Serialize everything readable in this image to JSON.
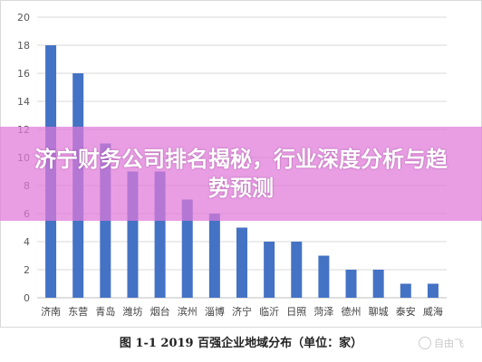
{
  "chart_data": {
    "type": "bar",
    "categories": [
      "济南",
      "东营",
      "青岛",
      "潍坊",
      "烟台",
      "滨州",
      "淄博",
      "济宁",
      "临沂",
      "日照",
      "菏泽",
      "德州",
      "聊城",
      "泰安",
      "威海"
    ],
    "values": [
      18,
      16,
      11,
      9,
      9,
      7,
      6,
      5,
      4,
      4,
      3,
      2,
      2,
      1,
      1
    ],
    "ylim": [
      0,
      20
    ],
    "yticks": [
      0,
      2,
      4,
      6,
      8,
      10,
      12,
      14,
      16,
      18,
      20
    ],
    "grid": true,
    "bar_color": "#4472C4"
  },
  "overlay": {
    "title": "济宁财务公司排名揭秘，行业深度分析与趋势预测",
    "color": "#E078DA"
  },
  "caption": "图 1-1   2019 百强企业地域分布（单位：家）",
  "watermark": "自由飞"
}
